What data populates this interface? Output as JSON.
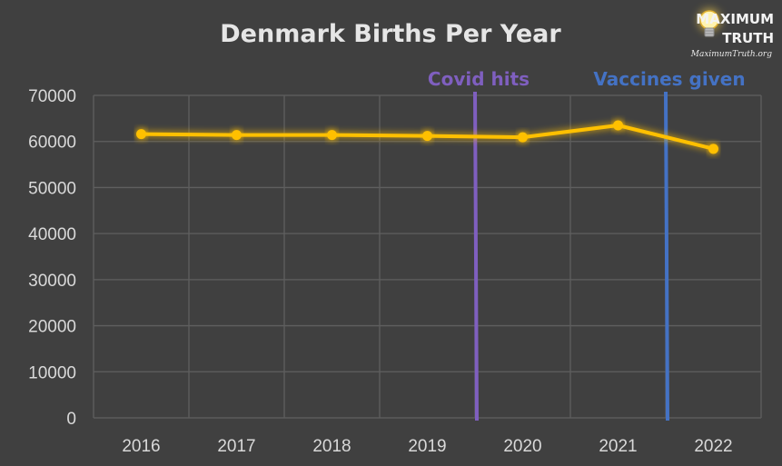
{
  "chart_data": {
    "type": "line",
    "title": "Denmark Births Per Year",
    "categories": [
      "2016",
      "2017",
      "2018",
      "2019",
      "2020",
      "2021",
      "2022"
    ],
    "series": [
      {
        "values": [
          61600,
          61400,
          61400,
          61200,
          60900,
          63500,
          58400
        ]
      }
    ],
    "ylim": [
      0,
      70000
    ],
    "yticks": [
      0,
      10000,
      20000,
      30000,
      40000,
      50000,
      60000,
      70000
    ],
    "grid": true,
    "colors": {
      "series": "#ffc000",
      "background": "#404040",
      "grid": "#5f5f5f"
    },
    "annotations": [
      {
        "label": "Covid hits",
        "x": 2019.5,
        "color": "#7f5fbf"
      },
      {
        "label": "Vaccines given",
        "x": 2021.5,
        "color": "#4472c4"
      }
    ]
  },
  "logo": {
    "line1": "MAXIMUM",
    "line2": "TRUTH",
    "url": "MaximumTruth.org",
    "icon": "lightbulb-icon"
  }
}
